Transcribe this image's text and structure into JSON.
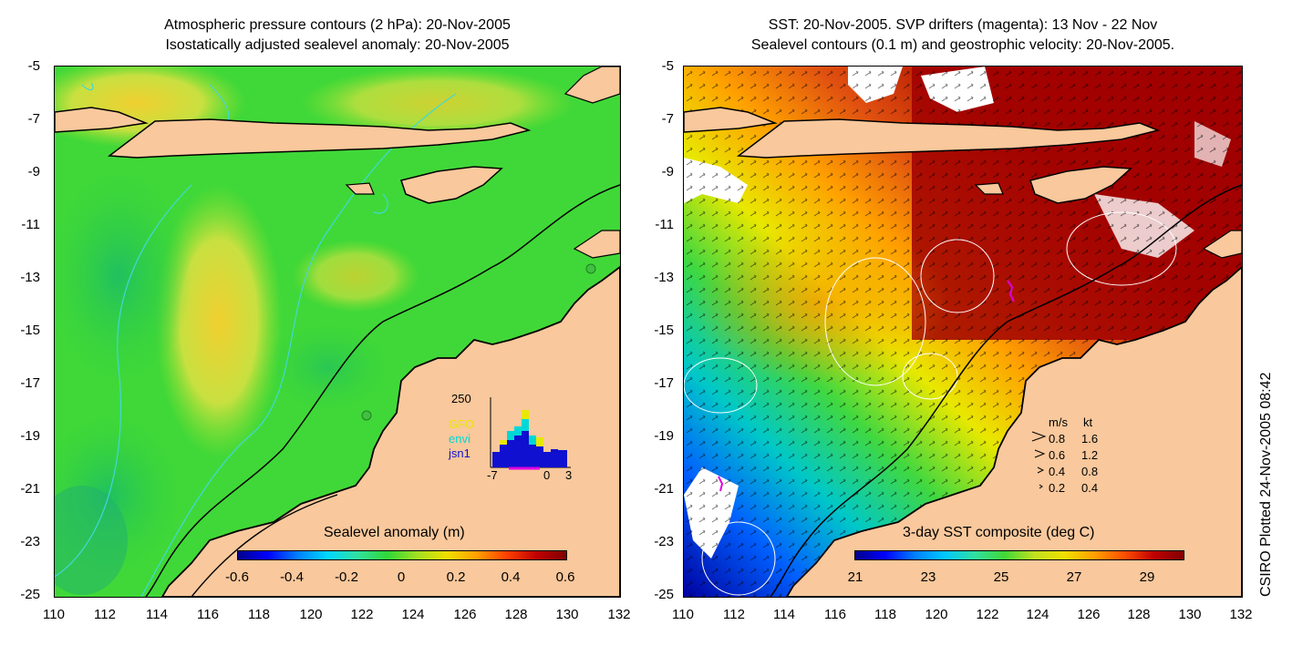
{
  "left_panel": {
    "title_line1": "Atmospheric pressure contours (2 hPa): 20-Nov-2005",
    "title_line2": "Isostatically adjusted sealevel anomaly: 20-Nov-2005",
    "colorbar_title": "Sealevel anomaly (m)",
    "colorbar_ticks": [
      "-0.6",
      "-0.4",
      "-0.2",
      "0",
      "0.2",
      "0.4",
      "0.6"
    ],
    "inset": {
      "ymax_label": "250",
      "x_labels": [
        "-7",
        "0",
        "3"
      ],
      "legend": [
        {
          "label": "GFO",
          "color": "#e8e800"
        },
        {
          "label": "envi",
          "color": "#00d8d8"
        },
        {
          "label": "jsn1",
          "color": "#1010d0"
        }
      ]
    }
  },
  "right_panel": {
    "title_line1": "SST: 20-Nov-2005. SVP drifters (magenta): 13 Nov - 22 Nov",
    "title_line2": "Sealevel contours (0.1 m) and geostrophic velocity: 20-Nov-2005.",
    "colorbar_title": "3-day SST composite (deg C)",
    "colorbar_ticks": [
      "21",
      "23",
      "25",
      "27",
      "29"
    ],
    "velocity_legend": {
      "header_ms": "m/s",
      "header_kt": "kt",
      "rows": [
        {
          "ms": "0.8",
          "kt": "1.6"
        },
        {
          "ms": "0.6",
          "kt": "1.2"
        },
        {
          "ms": "0.4",
          "kt": "0.8"
        },
        {
          "ms": "0.2",
          "kt": "0.4"
        }
      ]
    }
  },
  "axes": {
    "y_ticks": [
      "-5",
      "-7",
      "-9",
      "-11",
      "-13",
      "-15",
      "-17",
      "-19",
      "-21",
      "-23",
      "-25"
    ],
    "x_ticks": [
      "110",
      "112",
      "114",
      "116",
      "118",
      "120",
      "122",
      "124",
      "126",
      "128",
      "130",
      "132"
    ]
  },
  "credit": "CSIRO Plotted 24-Nov-2005 08:42",
  "colors": {
    "land": "#f9c89c",
    "contour": "#40d8d8",
    "coast": "#000000",
    "drifter": "#e000e0"
  }
}
